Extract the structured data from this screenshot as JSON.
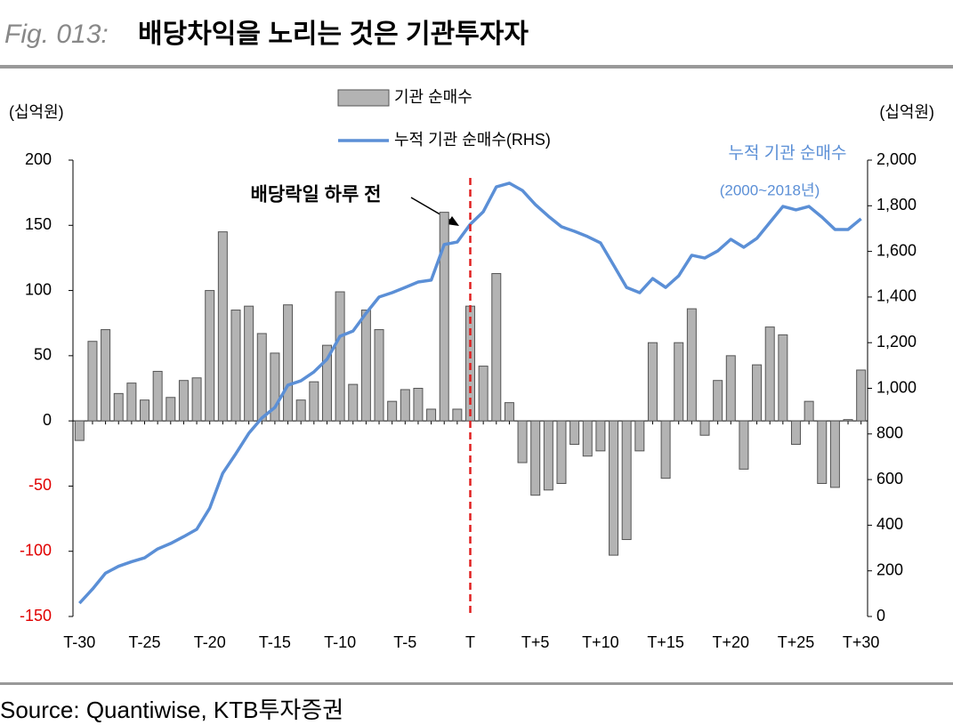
{
  "header": {
    "fig": "Fig. 013:",
    "title": "배당차익을 노리는 것은 기관투자자"
  },
  "chart_data": {
    "type": "bar-line",
    "y_unit": "(십억원)",
    "y2_unit": "(십억원)",
    "categories": [
      "T-30",
      null,
      null,
      null,
      null,
      "T-25",
      null,
      null,
      null,
      null,
      "T-20",
      null,
      null,
      null,
      null,
      "T-15",
      null,
      null,
      null,
      null,
      "T-10",
      null,
      null,
      null,
      null,
      "T-5",
      null,
      null,
      null,
      null,
      "T",
      null,
      null,
      null,
      null,
      "T+5",
      null,
      null,
      null,
      null,
      "T+10",
      null,
      null,
      null,
      null,
      "T+15",
      null,
      null,
      null,
      null,
      "T+20",
      null,
      null,
      null,
      null,
      "T+25",
      null,
      null,
      null,
      null,
      "T+30"
    ],
    "series": [
      {
        "name": "기관 순매수",
        "type": "bar",
        "color": "#b3b3b3",
        "values": [
          -15,
          61,
          70,
          21,
          29,
          16,
          38,
          18,
          31,
          33,
          100,
          145,
          85,
          88,
          67,
          52,
          89,
          16,
          30,
          58,
          99,
          28,
          85,
          70,
          15,
          24,
          25,
          9,
          160,
          9,
          88,
          42,
          113,
          14,
          -32,
          -57,
          -53,
          -48,
          -18,
          -27,
          -23,
          -103,
          -91,
          -23,
          60,
          -44,
          60,
          86,
          -11,
          31,
          50,
          -37,
          43,
          72,
          66,
          -18,
          15,
          -48,
          -51,
          1,
          39
        ]
      },
      {
        "name": "누적 기관 순매수(RHS)",
        "type": "line",
        "axis": "y2",
        "color": "#5b8fd6",
        "values": [
          58,
          120,
          190,
          220,
          240,
          257,
          296,
          320,
          350,
          382,
          475,
          628,
          713,
          803,
          870,
          916,
          1014,
          1033,
          1072,
          1127,
          1228,
          1251,
          1329,
          1400,
          1419,
          1442,
          1466,
          1474,
          1630,
          1641,
          1719,
          1774,
          1883,
          1899,
          1867,
          1805,
          1754,
          1708,
          1688,
          1665,
          1637,
          1540,
          1442,
          1419,
          1481,
          1442,
          1493,
          1583,
          1571,
          1602,
          1653,
          1618,
          1657,
          1727,
          1797,
          1782,
          1797,
          1750,
          1696,
          1696,
          1743
        ]
      }
    ],
    "ylim": [
      -150,
      200
    ],
    "yticks": [
      200,
      150,
      100,
      50,
      0,
      -50,
      -100,
      -150
    ],
    "negative_tick_color": "#e00000",
    "y2lim": [
      0,
      2000
    ],
    "y2ticks": [
      {
        "value": 2000,
        "label": "2,000"
      },
      {
        "value": 1800,
        "label": "1,800"
      },
      {
        "value": 1600,
        "label": "1,600"
      },
      {
        "value": 1400,
        "label": "1,400"
      },
      {
        "value": 1200,
        "label": "1,200"
      },
      {
        "value": 1000,
        "label": "1,000"
      },
      800,
      600,
      400,
      200,
      0
    ],
    "vline_at": "T",
    "vline_color": "#e02020",
    "annotations": [
      "배당락일 하루 전",
      "누적 기관 순매수",
      "(2000~2018년)"
    ],
    "grid": false
  },
  "source": "Source: Quantiwise, KTB투자증권"
}
